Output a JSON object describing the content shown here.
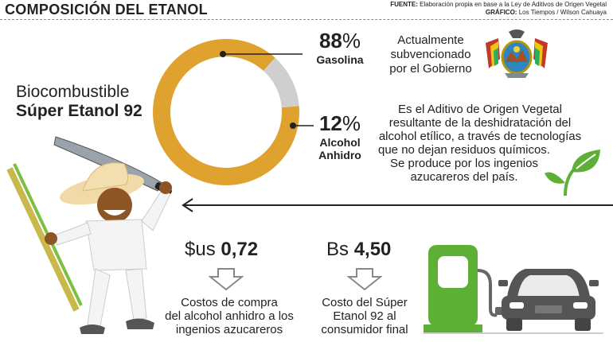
{
  "header": {
    "title": "COMPOSICIÓN DEL ETANOL",
    "source_label": "FUENTE:",
    "source_text": "Elaboración propia en base a la Ley de Aditivos de Origen Vegetal",
    "graphic_label": "GRÁFICO:",
    "graphic_text": "Los Tiempos / Wilson Cahuaya"
  },
  "product": {
    "line1": "Biocombustible",
    "line2": "Súper Etanol 92"
  },
  "chart_data": {
    "type": "pie",
    "donut": true,
    "slices": [
      {
        "name": "Gasolina",
        "value": 88,
        "display": "88",
        "unit": "%",
        "color": "#DFA22E"
      },
      {
        "name": "Alcohol Anhidro",
        "name_lines": [
          "Alcohol",
          "Anhidro"
        ],
        "value": 12,
        "display": "12",
        "unit": "%",
        "color": "#CFCFCF"
      }
    ]
  },
  "notes": {
    "subsidy_lines": [
      "Actualmente",
      "subvencionado",
      "por el Gobierno"
    ],
    "definition_lines": [
      "Es el Aditivo de Origen Vegetal",
      "resultante de la deshidratación del",
      "alcohol etílico, a través de tecnologías",
      "que no dejan residuos químicos.",
      "Se produce por los ingenios",
      "azucareros del país."
    ]
  },
  "prices": {
    "purchase": {
      "currency": "$us",
      "amount": "0,72",
      "caption_lines": [
        "Costos de compra",
        "del alcohol anhidro a los",
        "ingenios azucareros"
      ]
    },
    "consumer": {
      "currency": "Bs",
      "amount": "4,50",
      "caption_lines": [
        "Costo del Súper",
        "Etanol 92 al",
        "consumidor final"
      ]
    }
  },
  "icons": {
    "coat_of_arms": "bolivia-coat-of-arms-icon",
    "leaf": "leaf-icon",
    "farmer": "farmer-with-machete-and-sugarcane-illustration",
    "fuel_pump": "fuel-pump-icon",
    "car": "car-icon",
    "down_arrow": "down-arrow-icon"
  },
  "colors": {
    "gasolina": "#DFA22E",
    "alcohol": "#CFCFCF",
    "leaf": "#5DB035",
    "pump": "#5DB035",
    "car": "#555555"
  }
}
